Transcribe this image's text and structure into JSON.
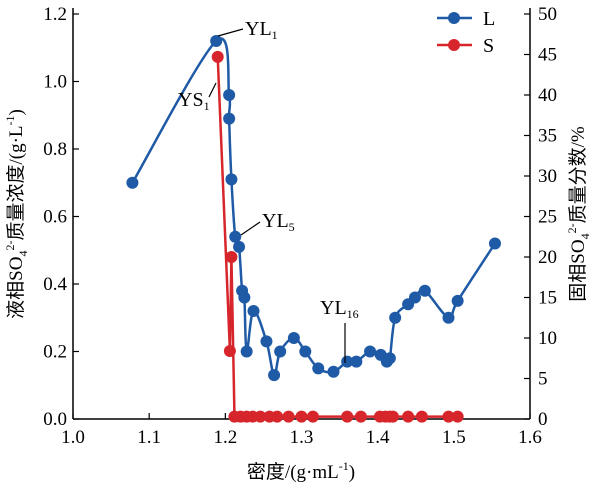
{
  "chart_data": {
    "type": "line",
    "xlabel": {
      "main": "密度/(g·mL",
      "sup": "-1",
      "tail": ")"
    },
    "ylabel_left": {
      "pre": "液相SO",
      "sub": "4",
      "sup": "2-",
      "mid": "质量浓度/(g·L",
      "sup2": "-1",
      "tail": ")"
    },
    "ylabel_right": {
      "pre": "固相SO",
      "sub": "4",
      "sup": "2-",
      "tail": "质量分数/%"
    },
    "xlim": [
      1.0,
      1.6
    ],
    "ylim_left": [
      0.0,
      1.2
    ],
    "ylim_right": [
      0,
      50
    ],
    "x_ticks": [
      "1.0",
      "1.1",
      "1.2",
      "1.3",
      "1.4",
      "1.5",
      "1.6"
    ],
    "y_left_ticks": [
      "0.0",
      "0.2",
      "0.4",
      "0.6",
      "0.8",
      "1.0",
      "1.2"
    ],
    "y_right_ticks": [
      "0",
      "5",
      "10",
      "15",
      "20",
      "25",
      "30",
      "35",
      "40",
      "45",
      "50"
    ],
    "legend": [
      {
        "name": "L",
        "color": "#1f5aa6"
      },
      {
        "name": "S",
        "color": "#d7262b"
      }
    ],
    "series": [
      {
        "name": "L",
        "axis": "left",
        "color": "#1f5aa6",
        "x": [
          1.078,
          1.188,
          1.205,
          1.205,
          1.208,
          1.213,
          1.218,
          1.222,
          1.225,
          1.228,
          1.237,
          1.254,
          1.264,
          1.272,
          1.29,
          1.305,
          1.322,
          1.342,
          1.36,
          1.372,
          1.39,
          1.404,
          1.412,
          1.416,
          1.423,
          1.44,
          1.449,
          1.462,
          1.493,
          1.505,
          1.554
        ],
        "y": [
          0.7,
          1.12,
          0.96,
          0.89,
          0.71,
          0.54,
          0.51,
          0.38,
          0.36,
          0.2,
          0.32,
          0.23,
          0.13,
          0.2,
          0.24,
          0.2,
          0.15,
          0.14,
          0.17,
          0.17,
          0.2,
          0.19,
          0.17,
          0.18,
          0.3,
          0.34,
          0.36,
          0.38,
          0.3,
          0.35,
          0.52
        ]
      },
      {
        "name": "S",
        "axis": "right",
        "color": "#d7262b",
        "x": [
          1.19,
          1.206,
          1.208,
          1.212,
          1.22,
          1.228,
          1.236,
          1.246,
          1.258,
          1.268,
          1.283,
          1.3,
          1.315,
          1.36,
          1.378,
          1.403,
          1.41,
          1.416,
          1.42,
          1.44,
          1.458,
          1.493,
          1.505
        ],
        "y": [
          44.7,
          8.4,
          20.0,
          0.3,
          0.3,
          0.3,
          0.3,
          0.3,
          0.3,
          0.3,
          0.3,
          0.3,
          0.3,
          0.3,
          0.3,
          0.3,
          0.3,
          0.3,
          0.3,
          0.3,
          0.3,
          0.3,
          0.3
        ]
      }
    ],
    "annotations": [
      {
        "base": "YL",
        "sub": "1"
      },
      {
        "base": "YS",
        "sub": "1"
      },
      {
        "base": "YL",
        "sub": "5"
      },
      {
        "base": "YL",
        "sub": "16"
      }
    ],
    "grid": false,
    "legend_position": "top-right"
  }
}
